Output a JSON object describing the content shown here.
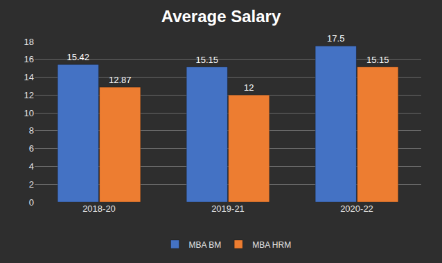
{
  "chart_data": {
    "type": "bar",
    "title": "Average Salary",
    "categories": [
      "2018-20",
      "2019-21",
      "2020-22"
    ],
    "series": [
      {
        "name": "MBA BM",
        "color": "#4472c4",
        "values": [
          15.42,
          15.15,
          17.5
        ]
      },
      {
        "name": "MBA HRM",
        "color": "#ed7d31",
        "values": [
          12.87,
          12,
          15.15
        ]
      }
    ],
    "ylim": [
      0,
      18
    ],
    "yticks": [
      0,
      2,
      4,
      6,
      8,
      10,
      12,
      14,
      16,
      18
    ],
    "grid": true,
    "legend": "bottom",
    "data_labels": true
  }
}
